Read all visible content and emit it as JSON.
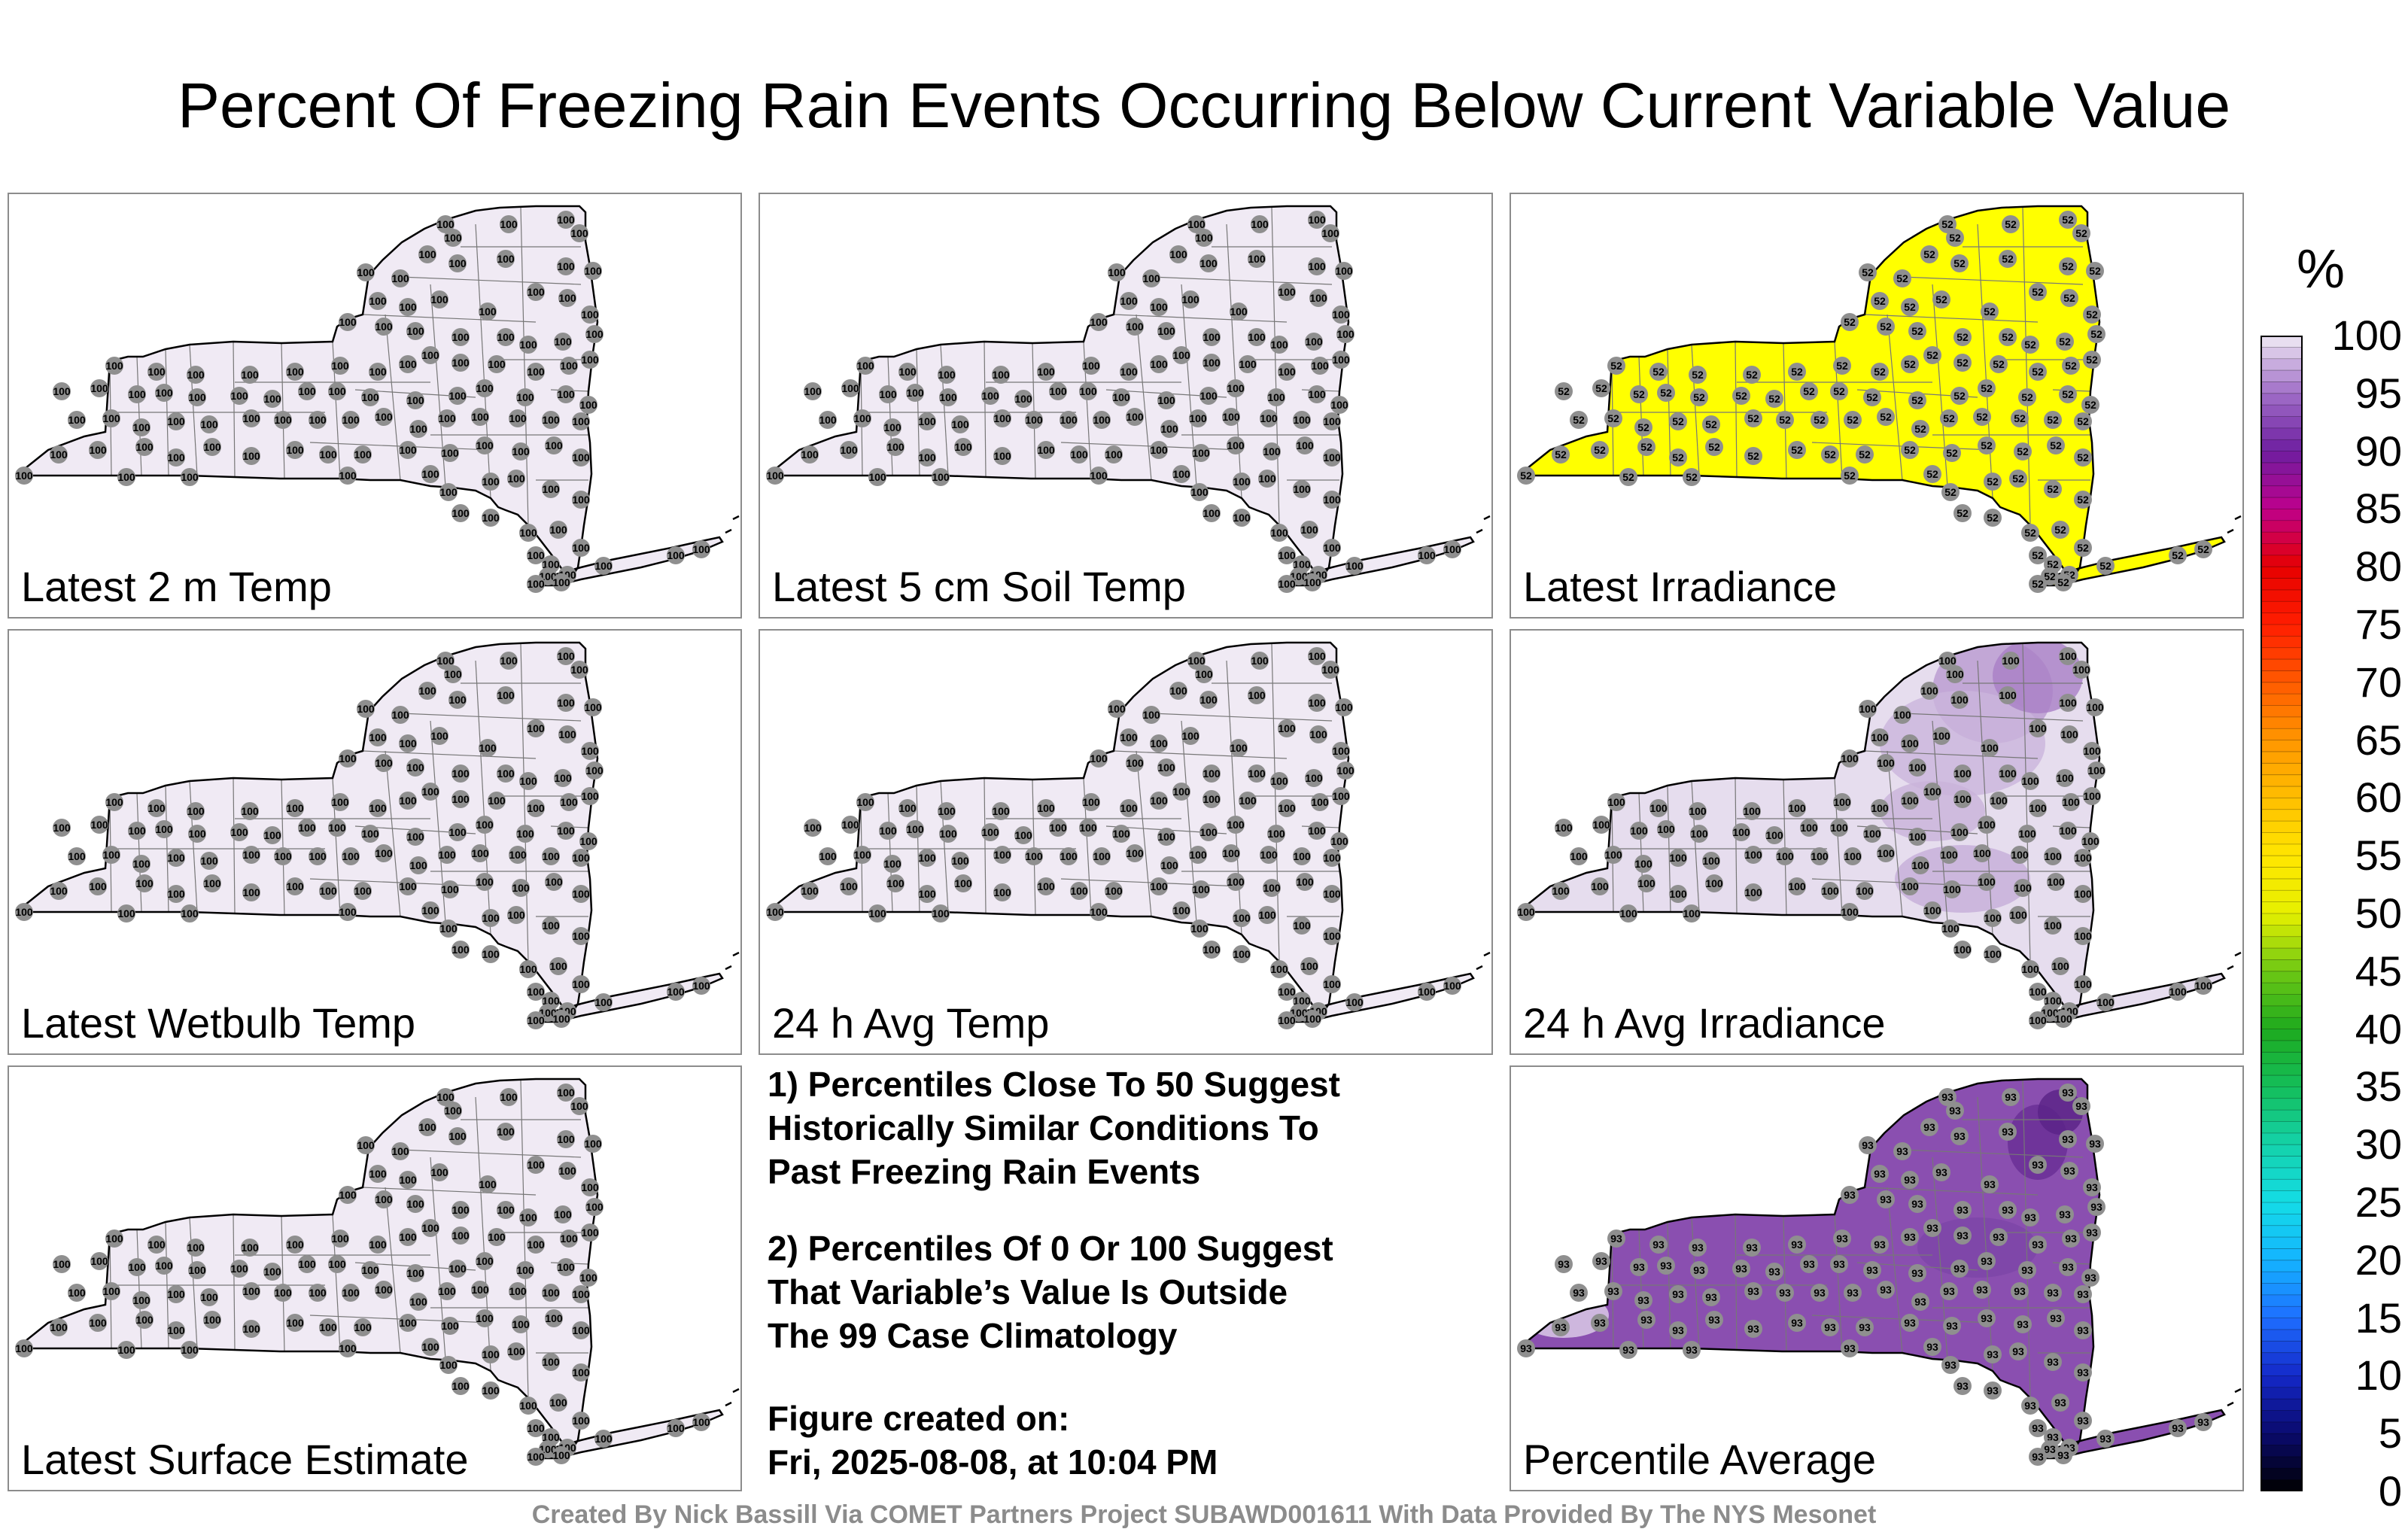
{
  "title": "Percent Of Freezing Rain Events Occurring Below Current Variable Value",
  "panels": [
    {
      "label": "Latest 2 m Temp",
      "fill": "#f0eaf4",
      "station_value": "100",
      "variant": "uniform"
    },
    {
      "label": "Latest 5 cm Soil Temp",
      "fill": "#f0eaf4",
      "station_value": "100",
      "variant": "uniform"
    },
    {
      "label": "Latest Irradiance",
      "fill": "#ffff00",
      "station_value": "52",
      "variant": "uniform"
    },
    {
      "label": "Latest Wetbulb Temp",
      "fill": "#f0eaf4",
      "station_value": "100",
      "variant": "uniform"
    },
    {
      "label": "24 h Avg Temp",
      "fill": "#f0eaf4",
      "station_value": "100",
      "variant": "uniform"
    },
    {
      "label": "24 h Avg Irradiance",
      "fill": "#e6ddee",
      "station_value": "100",
      "variant": "irr24"
    },
    {
      "label": "Latest Surface Estimate",
      "fill": "#f0eaf4",
      "station_value": "100",
      "variant": "uniform"
    },
    {
      "label": "Percentile Average",
      "fill": "#8a4fb0",
      "station_value": "93",
      "variant": "avg"
    }
  ],
  "notes": {
    "note1": [
      "1) Percentiles Close To 50 Suggest",
      "Historically Similar Conditions To",
      "Past Freezing Rain Events"
    ],
    "note2": [
      "2) Percentiles Of 0 Or 100 Suggest",
      "That Variable’s Value Is Outside",
      "The 99 Case Climatology"
    ],
    "created_label": "Figure created on:",
    "created_value": "Fri, 2025-08-08, at 10:04 PM"
  },
  "colorbar": {
    "unit": "%",
    "ticks": [
      "100",
      "95",
      "90",
      "85",
      "80",
      "75",
      "70",
      "65",
      "60",
      "55",
      "50",
      "45",
      "40",
      "35",
      "30",
      "25",
      "20",
      "15",
      "10",
      "5",
      "0"
    ]
  },
  "footer": "Created By Nick Bassill Via COMET Partners Project SUBAWD001611 With Data Provided By The NYS Mesonet",
  "chart_data": {
    "type": "heatmap",
    "title": "Percent Of Freezing Rain Events Occurring Below Current Variable Value",
    "colorbar_range": [
      0,
      100
    ],
    "colorbar_unit": "%",
    "panels": [
      {
        "name": "Latest 2 m Temp",
        "station_percentile": 100
      },
      {
        "name": "Latest 5 cm Soil Temp",
        "station_percentile": 100
      },
      {
        "name": "Latest Irradiance",
        "station_percentile": 52
      },
      {
        "name": "Latest Wetbulb Temp",
        "station_percentile": 100
      },
      {
        "name": "24 h Avg Temp",
        "station_percentile": 100
      },
      {
        "name": "24 h Avg Irradiance",
        "station_percentile_range": [
          92,
          100
        ]
      },
      {
        "name": "Latest Surface Estimate",
        "station_percentile": 100
      },
      {
        "name": "Percentile Average",
        "station_percentile_range": [
          86,
          100
        ]
      }
    ]
  }
}
